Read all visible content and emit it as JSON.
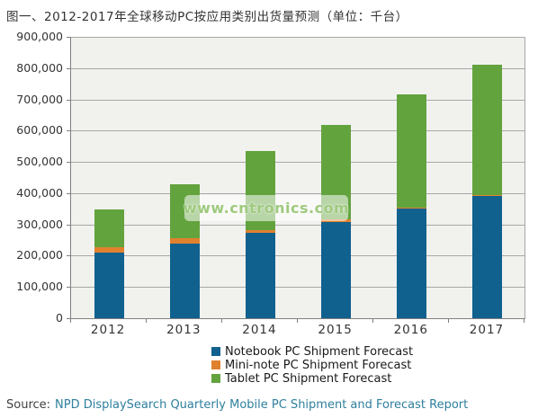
{
  "page": {
    "title": "图一、2012-2017年全球移动PC按应用类别出货量预测（单位：千台）",
    "watermark": "www.cntronics.com",
    "source_label": "Source:",
    "source_link": "NPD DisplaySearch Quarterly Mobile PC Shipment and Forecast Report"
  },
  "colors": {
    "notebook_blue": "#10618e",
    "mini_note_orange": "#e0812e",
    "tablet_green": "#63a33e",
    "plot_background": "#f1f1ee",
    "gridline": "#a8a8a8",
    "axis": "#7f7f7f",
    "text": "#333333",
    "source_link": "#2e7f9d",
    "watermark_text": "#9fca7e"
  },
  "chart_data": {
    "type": "bar",
    "stacked": true,
    "title": "图一、2012-2017年全球移动PC按应用类别出货量预测（单位：千台）",
    "unit": "千台",
    "categories": [
      "2012",
      "2013",
      "2014",
      "2015",
      "2016",
      "2017"
    ],
    "series": [
      {
        "name": "Notebook PC Shipment Forecast",
        "color": "#10618e",
        "values": [
          209000,
          239000,
          272000,
          309000,
          351000,
          393000
        ]
      },
      {
        "name": "Mini-note PC Shipment Forecast",
        "color": "#e0812e",
        "values": [
          17000,
          17000,
          11000,
          7000,
          2000,
          1000
        ]
      },
      {
        "name": "Tablet PC Shipment Forecast",
        "color": "#63a33e",
        "values": [
          121000,
          172000,
          252000,
          302000,
          364000,
          416000
        ]
      }
    ],
    "totals": [
      347000,
      428000,
      535000,
      618000,
      717000,
      810000
    ],
    "xlabel": "",
    "ylabel": "",
    "ylim": [
      0,
      900000
    ],
    "ytick_interval": 100000,
    "ytick_labels": [
      "0",
      "100,000",
      "200,000",
      "300,000",
      "400,000",
      "500,000",
      "600,000",
      "700,000",
      "800,000",
      "900,000"
    ],
    "grid": true,
    "legend_position": "bottom"
  }
}
